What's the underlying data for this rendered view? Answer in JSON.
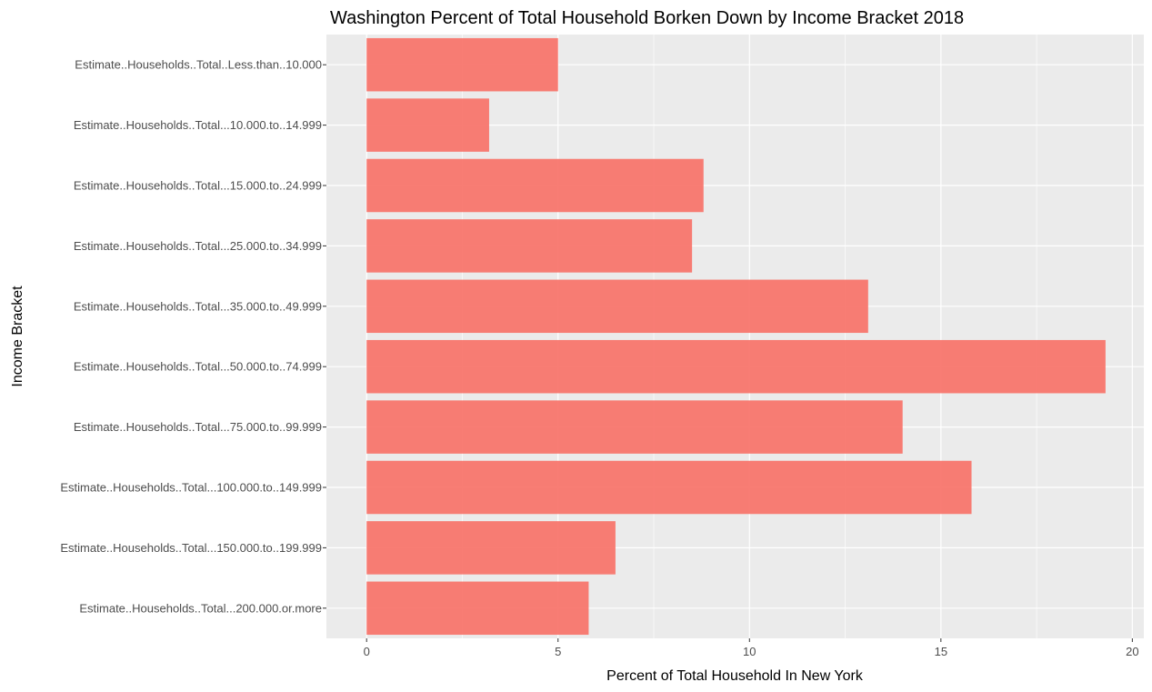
{
  "colors": {
    "panel": "#ebebeb",
    "grid_major": "#ffffff",
    "bar": "#f8766d",
    "tick_text": "#4d4d4d"
  },
  "chart_data": {
    "type": "bar",
    "orientation": "horizontal",
    "title": "Washington Percent of Total Household Borken Down by Income Bracket 2018",
    "xlabel": "Percent of Total Household In New York",
    "ylabel": "Income Bracket",
    "xlim": [
      -1.05,
      20.3
    ],
    "xticks": [
      0,
      5,
      10,
      15,
      20
    ],
    "grid": true,
    "categories": [
      "Estimate..Households..Total..Less.than..10.000",
      "Estimate..Households..Total...10.000.to..14.999",
      "Estimate..Households..Total...15.000.to..24.999",
      "Estimate..Households..Total...25.000.to..34.999",
      "Estimate..Households..Total...35.000.to..49.999",
      "Estimate..Households..Total...50.000.to..74.999",
      "Estimate..Households..Total...75.000.to..99.999",
      "Estimate..Households..Total...100.000.to..149.999",
      "Estimate..Households..Total...150.000.to..199.999",
      "Estimate..Households..Total...200.000.or.more"
    ],
    "values": [
      5.0,
      3.2,
      8.8,
      8.5,
      13.1,
      19.3,
      14.0,
      15.8,
      6.5,
      5.8
    ]
  }
}
